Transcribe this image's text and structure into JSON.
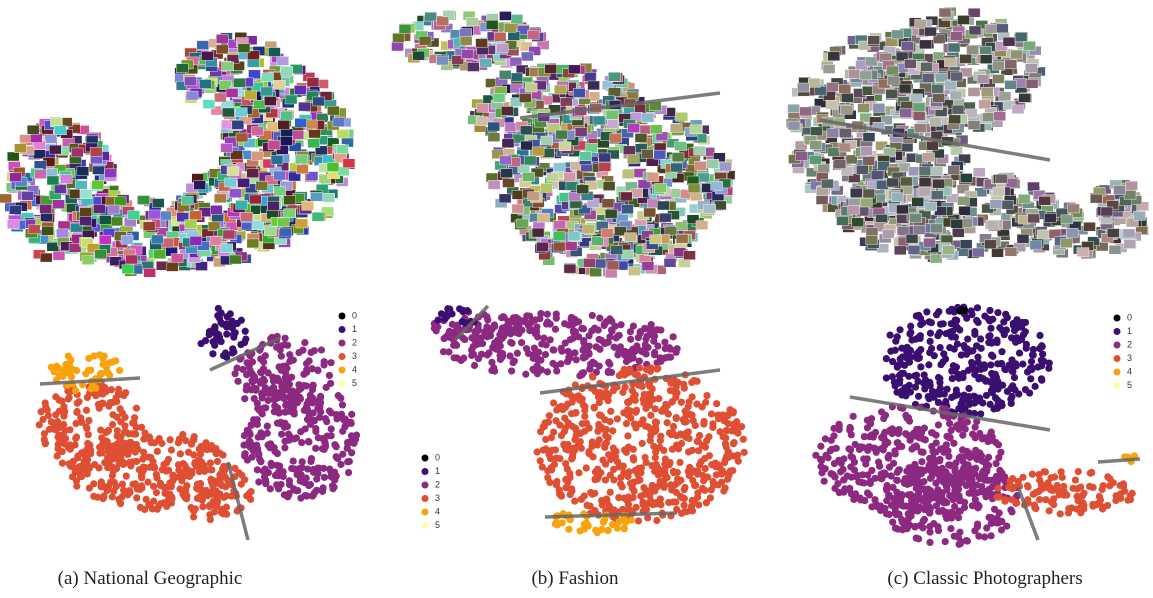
{
  "panels": [
    {
      "caption": "(a) National Geographic",
      "legend": [
        {
          "label": "0",
          "color": "#000004"
        },
        {
          "label": "1",
          "color": "#3b0f70"
        },
        {
          "label": "2",
          "color": "#8c2981"
        },
        {
          "label": "3",
          "color": "#de4f33"
        },
        {
          "label": "4",
          "color": "#f8a20c"
        },
        {
          "label": "5",
          "color": "#fcffa4"
        }
      ]
    },
    {
      "caption": "(b) Fashion",
      "legend": [
        {
          "label": "0",
          "color": "#000004"
        },
        {
          "label": "1",
          "color": "#3b0f70"
        },
        {
          "label": "2",
          "color": "#8c2981"
        },
        {
          "label": "3",
          "color": "#de4f33"
        },
        {
          "label": "4",
          "color": "#f8a20c"
        },
        {
          "label": "5",
          "color": "#fcffa4"
        }
      ]
    },
    {
      "caption": "(c) Classic Photographers",
      "legend": [
        {
          "label": "0",
          "color": "#000004"
        },
        {
          "label": "1",
          "color": "#3b0f70"
        },
        {
          "label": "2",
          "color": "#8c2981"
        },
        {
          "label": "3",
          "color": "#de4f33"
        },
        {
          "label": "4",
          "color": "#f8a20c"
        },
        {
          "label": "5",
          "color": "#fcffa4"
        }
      ]
    }
  ]
}
